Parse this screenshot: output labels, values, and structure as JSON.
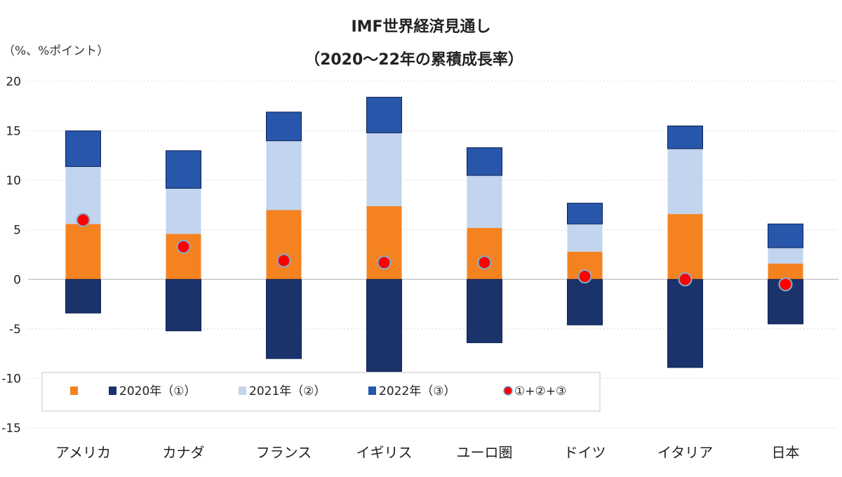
{
  "chart_data": {
    "type": "bar",
    "stacked": true,
    "title": "IMF世界経済見通し",
    "subtitle": "（2020～22年の累積成長率）",
    "ylabel": "（%、%ポイント）",
    "xlabel": "",
    "ylim": [
      -15,
      20
    ],
    "yticks": [
      20,
      15,
      10,
      5,
      0,
      -5,
      -10,
      -15
    ],
    "grid": true,
    "legend_position": "bottom-left",
    "categories": [
      "アメリカ",
      "カナダ",
      "フランス",
      "イギリス",
      "ユーロ圏",
      "ドイツ",
      "イタリア",
      "日本"
    ],
    "series": [
      {
        "name": "",
        "kind": "bar",
        "color": "#F58220",
        "values": [
          5.6,
          4.6,
          7.0,
          7.4,
          5.2,
          2.8,
          6.6,
          1.6
        ]
      },
      {
        "name": "2020年（①）",
        "kind": "bar",
        "color": "#1B336B",
        "values": [
          -3.4,
          -5.2,
          -8.0,
          -9.3,
          -6.4,
          -4.6,
          -8.9,
          -4.5
        ]
      },
      {
        "name": "2021年（②）",
        "kind": "bar",
        "color": "#C2D4EE",
        "values": [
          5.8,
          4.6,
          7.0,
          7.4,
          5.3,
          2.8,
          6.6,
          1.6
        ]
      },
      {
        "name": "2022年（③）",
        "kind": "bar",
        "color": "#2756AA",
        "values": [
          3.6,
          3.8,
          2.9,
          3.6,
          2.8,
          2.1,
          2.3,
          2.4
        ]
      },
      {
        "name": "①+②+③",
        "kind": "marker",
        "color": "#FF0000",
        "values": [
          6.0,
          3.3,
          1.9,
          1.7,
          1.7,
          0.3,
          0.0,
          -0.5
        ]
      }
    ]
  }
}
